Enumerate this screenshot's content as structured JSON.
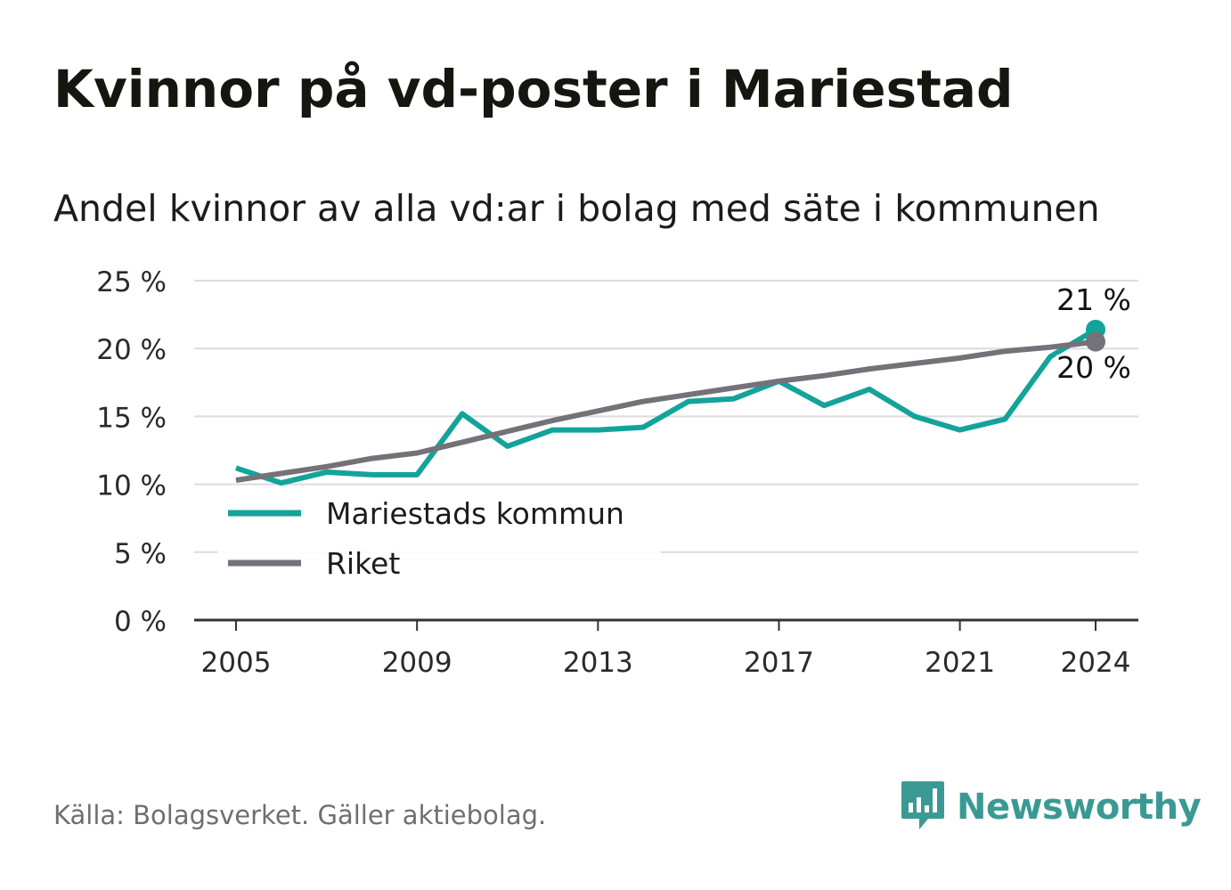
{
  "chart_data": {
    "type": "line",
    "title": "Kvinnor på vd-poster i Mariestad",
    "subtitle": "Andel kvinnor av alla vd:ar i bolag med säte i kommunen",
    "x": [
      2005,
      2006,
      2007,
      2008,
      2009,
      2010,
      2011,
      2012,
      2013,
      2014,
      2015,
      2016,
      2017,
      2018,
      2019,
      2020,
      2021,
      2022,
      2023,
      2024
    ],
    "x_ticks": [
      "2005",
      "2009",
      "2013",
      "2017",
      "2021",
      "2024"
    ],
    "y_ticks": [
      "0 %",
      "5 %",
      "10 %",
      "15 %",
      "20 %",
      "25 %"
    ],
    "ylim": [
      0,
      25
    ],
    "grid": true,
    "legend_position": "bottom-left",
    "series": [
      {
        "name": "Mariestads kommun",
        "color": "#14a39b",
        "values": [
          11.2,
          10.1,
          10.9,
          10.7,
          10.7,
          15.2,
          12.8,
          14.0,
          14.0,
          14.2,
          16.1,
          16.3,
          17.6,
          15.8,
          17.0,
          15.0,
          14.0,
          14.8,
          19.4,
          21.4
        ],
        "end_label": "21 %"
      },
      {
        "name": "Riket",
        "color": "#747278",
        "values": [
          10.3,
          10.8,
          11.3,
          11.9,
          12.3,
          13.1,
          13.9,
          14.7,
          15.4,
          16.1,
          16.6,
          17.1,
          17.6,
          18.0,
          18.5,
          18.9,
          19.3,
          19.8,
          20.1,
          20.5
        ],
        "end_label": "20 %"
      }
    ]
  },
  "footer": {
    "source": "Källa: Bolagsverket. Gäller aktiebolag.",
    "brand": "Newsworthy"
  },
  "colors": {
    "title": "#161610",
    "grid": "#dcdcdc",
    "axis": "#333333",
    "source": "#6f6f6f",
    "brand": "#3a9a93"
  },
  "icons": {
    "brand_logo": "bar-chart-speech-bubble-icon"
  }
}
